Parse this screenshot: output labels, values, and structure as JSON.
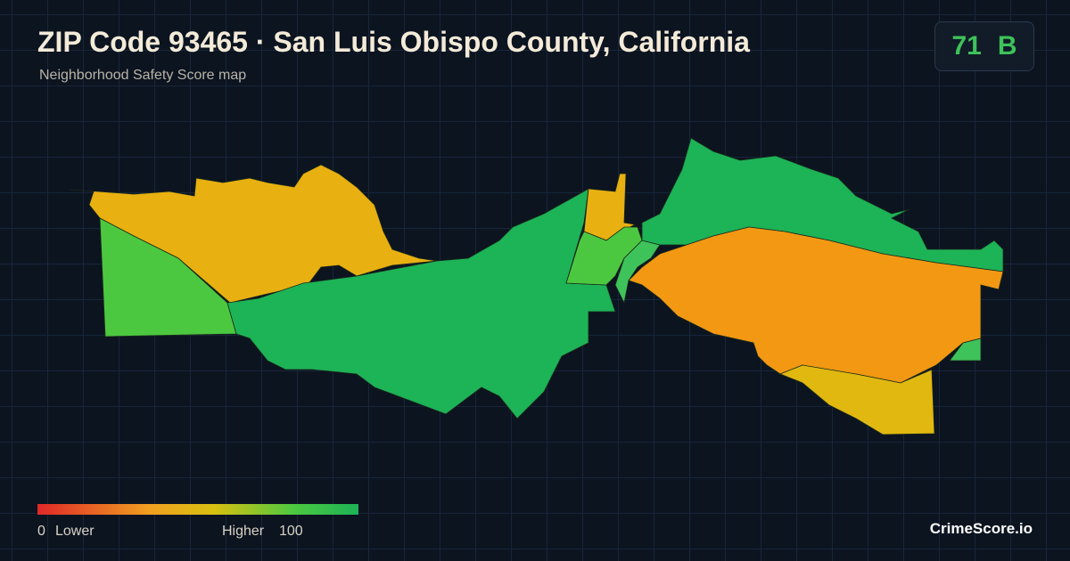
{
  "header": {
    "title": "ZIP Code 93465 · San Luis Obispo County, California",
    "subtitle": "Neighborhood Safety Score map"
  },
  "score": {
    "value": "71",
    "grade": "B"
  },
  "legend": {
    "min": "0",
    "min_label": "Lower",
    "max_label": "Higher",
    "max": "100"
  },
  "brand": "CrimeScore.io"
}
